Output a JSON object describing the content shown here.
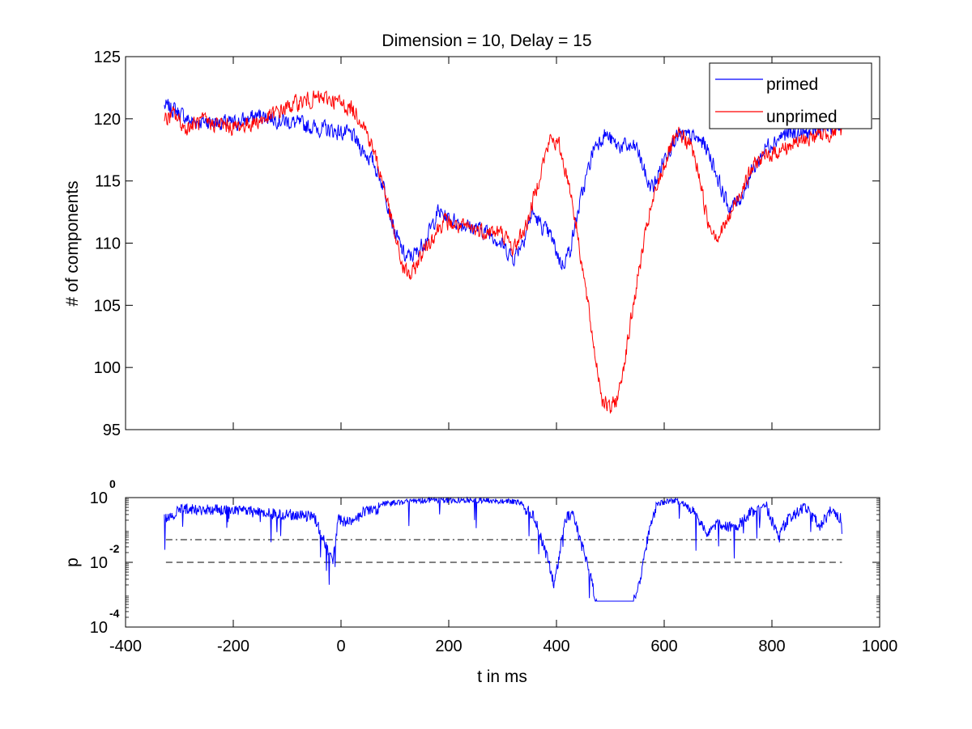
{
  "chart_data": [
    {
      "type": "line",
      "title": "Dimension  = 10, Delay = 15",
      "ylabel": "# of components",
      "xlabel": "",
      "xlim": [
        -400,
        1000
      ],
      "ylim": [
        95,
        125
      ],
      "yticks": [
        95,
        100,
        105,
        110,
        115,
        120,
        125
      ],
      "xticks": [
        -400,
        -200,
        0,
        200,
        400,
        600,
        800,
        1000
      ],
      "x_tick_labels_visible": false,
      "grid": false,
      "legend": {
        "placement": "top-right",
        "entries": [
          "primed",
          "unprimed"
        ]
      },
      "noise_amplitude": 0.9,
      "series": [
        {
          "name": "primed",
          "color": "#0000ff",
          "points": [
            [
              -328,
              121
            ],
            [
              -310,
              120.8
            ],
            [
              -280,
              119.8
            ],
            [
              -250,
              119.8
            ],
            [
              -200,
              119.6
            ],
            [
              -150,
              120.3
            ],
            [
              -100,
              119.8
            ],
            [
              -50,
              119.3
            ],
            [
              -20,
              119.1
            ],
            [
              0,
              118.9
            ],
            [
              20,
              118.7
            ],
            [
              40,
              117.5
            ],
            [
              60,
              116.5
            ],
            [
              80,
              114.5
            ],
            [
              100,
              110.8
            ],
            [
              120,
              108.8
            ],
            [
              140,
              109.2
            ],
            [
              160,
              110.5
            ],
            [
              180,
              112.5
            ],
            [
              200,
              112
            ],
            [
              240,
              111.3
            ],
            [
              280,
              110.8
            ],
            [
              320,
              108.8
            ],
            [
              340,
              110.5
            ],
            [
              355,
              112.5
            ],
            [
              370,
              111.5
            ],
            [
              390,
              110.5
            ],
            [
              410,
              108.2
            ],
            [
              425,
              109.5
            ],
            [
              445,
              113.5
            ],
            [
              470,
              117.8
            ],
            [
              490,
              118.8
            ],
            [
              510,
              117.9
            ],
            [
              550,
              117.6
            ],
            [
              570,
              114.8
            ],
            [
              580,
              114.5
            ],
            [
              600,
              116.8
            ],
            [
              620,
              118.5
            ],
            [
              650,
              118.6
            ],
            [
              675,
              118
            ],
            [
              690,
              116.5
            ],
            [
              705,
              114.5
            ],
            [
              720,
              112.8
            ],
            [
              740,
              113.5
            ],
            [
              760,
              115.5
            ],
            [
              790,
              117.8
            ],
            [
              820,
              118.7
            ],
            [
              860,
              118.8
            ],
            [
              900,
              119.3
            ],
            [
              930,
              119.6
            ]
          ]
        },
        {
          "name": "unprimed",
          "color": "#ff0000",
          "points": [
            [
              -328,
              119.8
            ],
            [
              -310,
              120.4
            ],
            [
              -290,
              119.2
            ],
            [
              -260,
              119.8
            ],
            [
              -230,
              119.6
            ],
            [
              -200,
              119.3
            ],
            [
              -170,
              119.6
            ],
            [
              -140,
              120
            ],
            [
              -110,
              120.7
            ],
            [
              -80,
              121.3
            ],
            [
              -50,
              121.6
            ],
            [
              -20,
              121.6
            ],
            [
              0,
              121.2
            ],
            [
              20,
              120.8
            ],
            [
              40,
              119.8
            ],
            [
              60,
              117.5
            ],
            [
              80,
              114.5
            ],
            [
              100,
              110.5
            ],
            [
              115,
              108
            ],
            [
              130,
              107.3
            ],
            [
              150,
              109.2
            ],
            [
              170,
              110.5
            ],
            [
              190,
              111.8
            ],
            [
              220,
              111.3
            ],
            [
              260,
              111
            ],
            [
              300,
              110.8
            ],
            [
              320,
              109.5
            ],
            [
              345,
              111.5
            ],
            [
              360,
              114
            ],
            [
              375,
              116.5
            ],
            [
              390,
              118.5
            ],
            [
              405,
              117.8
            ],
            [
              425,
              114.5
            ],
            [
              440,
              110.5
            ],
            [
              455,
              106
            ],
            [
              470,
              101.5
            ],
            [
              485,
              97.5
            ],
            [
              500,
              96.6
            ],
            [
              515,
              97.8
            ],
            [
              530,
              101.5
            ],
            [
              550,
              107
            ],
            [
              570,
              111.8
            ],
            [
              590,
              115
            ],
            [
              610,
              117.5
            ],
            [
              630,
              118.8
            ],
            [
              650,
              117.8
            ],
            [
              665,
              115.5
            ],
            [
              680,
              111.8
            ],
            [
              700,
              110.5
            ],
            [
              720,
              112
            ],
            [
              745,
              114.5
            ],
            [
              770,
              116.5
            ],
            [
              800,
              117.2
            ],
            [
              840,
              118
            ],
            [
              880,
              118.6
            ],
            [
              930,
              119.1
            ]
          ]
        }
      ]
    },
    {
      "type": "line",
      "title": "",
      "ylabel": "p",
      "xlabel": "t in ms",
      "xlim": [
        -400,
        1000
      ],
      "ylim": [
        0.0001,
        1
      ],
      "yscale": "log",
      "ytick_base": "10",
      "ytick_exponents": [
        "-4",
        "-2",
        "0"
      ],
      "xticks": [
        "-400",
        "-200",
        "0",
        "200",
        "400",
        "600",
        "800",
        "1000"
      ],
      "grid": false,
      "noise_amplitude": 0.35,
      "series": [
        {
          "color": "#0000ff",
          "points": [
            [
              -328,
              -0.5
            ],
            [
              -300,
              -0.2
            ],
            [
              -250,
              -0.2
            ],
            [
              -200,
              -0.2
            ],
            [
              -150,
              -0.3
            ],
            [
              -100,
              -0.35
            ],
            [
              -50,
              -0.4
            ],
            [
              -15,
              -1.8
            ],
            [
              -5,
              -0.5
            ],
            [
              20,
              -0.6
            ],
            [
              40,
              -0.3
            ],
            [
              80,
              -0.1
            ],
            [
              150,
              0
            ],
            [
              250,
              0
            ],
            [
              330,
              -0.05
            ],
            [
              355,
              -0.3
            ],
            [
              370,
              -1
            ],
            [
              385,
              -1.8
            ],
            [
              395,
              -2.5
            ],
            [
              405,
              -1.7
            ],
            [
              415,
              -0.5
            ],
            [
              430,
              -0.3
            ],
            [
              445,
              -1.2
            ],
            [
              460,
              -2
            ],
            [
              475,
              -3.2
            ],
            [
              500,
              -3.2
            ],
            [
              540,
              -3.2
            ],
            [
              555,
              -2.4
            ],
            [
              570,
              -1
            ],
            [
              585,
              -0.1
            ],
            [
              620,
              0
            ],
            [
              650,
              -0.2
            ],
            [
              680,
              -0.9
            ],
            [
              700,
              -0.6
            ],
            [
              730,
              -0.8
            ],
            [
              760,
              -0.3
            ],
            [
              790,
              -0.1
            ],
            [
              810,
              -1
            ],
            [
              830,
              -0.5
            ],
            [
              860,
              -0.1
            ],
            [
              890,
              -0.7
            ],
            [
              910,
              -0.2
            ],
            [
              930,
              -0.5
            ]
          ]
        }
      ],
      "threshold_lines": [
        {
          "value": 0.05,
          "style": "dash-dot",
          "color": "#000000",
          "x_range": [
            -325,
            930
          ]
        },
        {
          "value": 0.01,
          "style": "dashed",
          "color": "#000000",
          "x_range": [
            -325,
            930
          ]
        }
      ]
    }
  ]
}
